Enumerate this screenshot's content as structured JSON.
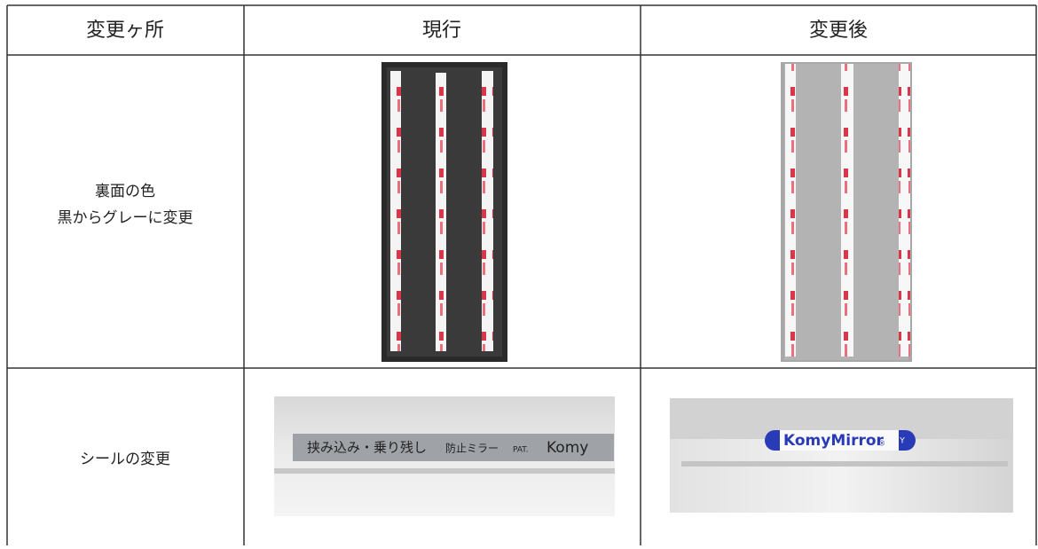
{
  "table": {
    "header": [
      "変更ヶ所",
      "現行",
      "変更後"
    ],
    "rows": [
      {
        "item": [
          "裏面の色",
          "黒からグレーに変更"
        ]
      },
      {
        "item": [
          "シールの変更"
        ],
        "current_label": [
          "挟み込み・乗り残し",
          "防止ミラー",
          "PAT.",
          "Komy"
        ],
        "new_label": [
          "KomyMirror",
          "®",
          "Y"
        ]
      }
    ]
  }
}
